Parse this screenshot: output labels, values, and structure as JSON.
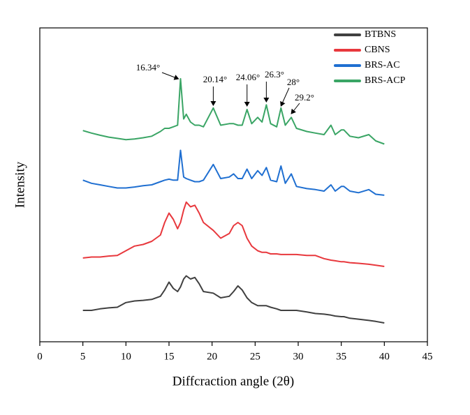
{
  "chart_data": {
    "type": "line",
    "xlabel": "Diffcraction angle (2θ)",
    "ylabel": "Intensity",
    "xlim": [
      0,
      45
    ],
    "xticks": [
      0,
      5,
      10,
      15,
      20,
      25,
      30,
      35,
      40,
      45
    ],
    "ylim": [
      0,
      100
    ],
    "legend": "upper right",
    "x": [
      5,
      6,
      7,
      8,
      9,
      10,
      11,
      12,
      13,
      14,
      14.5,
      15,
      15.5,
      16,
      16.34,
      16.7,
      17,
      17.5,
      18,
      18.5,
      19,
      20.14,
      21,
      22,
      22.5,
      23,
      23.5,
      24.06,
      24.6,
      25.3,
      25.8,
      26.3,
      26.8,
      27.5,
      28,
      28.5,
      29.2,
      29.8,
      31,
      32,
      33,
      33.8,
      34.3,
      35,
      35.3,
      36,
      37,
      38.2,
      39,
      40
    ],
    "series": [
      {
        "name": "BTBNS",
        "color": "#404040",
        "values": [
          10,
          10,
          10.5,
          10.8,
          11,
          12.5,
          13,
          13.2,
          13.5,
          14.5,
          16.5,
          19,
          17,
          16,
          17.5,
          20,
          21,
          20,
          20.5,
          18.5,
          16,
          15.5,
          14,
          14.5,
          16,
          17.8,
          16.5,
          14,
          12.5,
          11.5,
          11.5,
          11.5,
          11,
          10.5,
          10,
          10,
          10,
          10,
          9.5,
          9,
          8.8,
          8.5,
          8.2,
          8,
          8,
          7.5,
          7.2,
          6.8,
          6.5,
          6
        ]
      },
      {
        "name": "CBNS",
        "color": "#e8383d",
        "values": [
          26.7,
          27,
          27,
          27.3,
          27.5,
          29,
          30.5,
          31,
          32,
          34,
          38,
          41,
          39,
          36,
          38,
          42,
          44.5,
          43,
          43.5,
          41,
          38,
          35.5,
          33,
          34.5,
          37,
          38,
          37,
          33,
          30.5,
          29,
          28.5,
          28.5,
          28,
          28,
          27.8,
          27.8,
          27.8,
          27.8,
          27.5,
          27.5,
          26.5,
          26,
          25.8,
          25.5,
          25.5,
          25.2,
          25,
          24.7,
          24.4,
          24
        ]
      },
      {
        "name": "BRS-AC",
        "color": "#1f6fd1",
        "values": [
          51.5,
          50.5,
          50,
          49.5,
          49,
          49,
          49.3,
          49.7,
          50,
          51,
          51.5,
          51.8,
          51.5,
          51.5,
          61,
          52.5,
          52,
          51.5,
          51,
          51,
          51.5,
          56.5,
          52,
          52.5,
          53.5,
          52,
          52,
          55,
          52,
          54.5,
          53,
          55.5,
          51.5,
          51,
          56,
          50.5,
          53.5,
          49.5,
          48.8,
          48.5,
          48,
          50,
          48,
          49.5,
          49.5,
          48,
          47.5,
          48.5,
          47,
          46.7
        ]
      },
      {
        "name": "BRS-ACP",
        "color": "#3aa565",
        "values": [
          67.3,
          66.5,
          65.8,
          65.2,
          64.8,
          64.4,
          64.6,
          65,
          65.5,
          67,
          68,
          68,
          68.5,
          69,
          83.8,
          71,
          72.5,
          70,
          69,
          69,
          68.5,
          74.5,
          69,
          69.5,
          69.5,
          69,
          69,
          74,
          69.5,
          71.5,
          70,
          75.5,
          69.5,
          68.5,
          74.5,
          69,
          71.5,
          68,
          67,
          66.5,
          66,
          69,
          66,
          67.5,
          67.5,
          65.5,
          65,
          66,
          64,
          63
        ]
      }
    ],
    "annotations": [
      {
        "text": "16.34°",
        "x": 16.34
      },
      {
        "text": "20.14°",
        "x": 20.14
      },
      {
        "text": "24.06°",
        "x": 24.06
      },
      {
        "text": "26.3°",
        "x": 26.3
      },
      {
        "text": "28°",
        "x": 28
      },
      {
        "text": "29.2°",
        "x": 29.2
      }
    ]
  }
}
